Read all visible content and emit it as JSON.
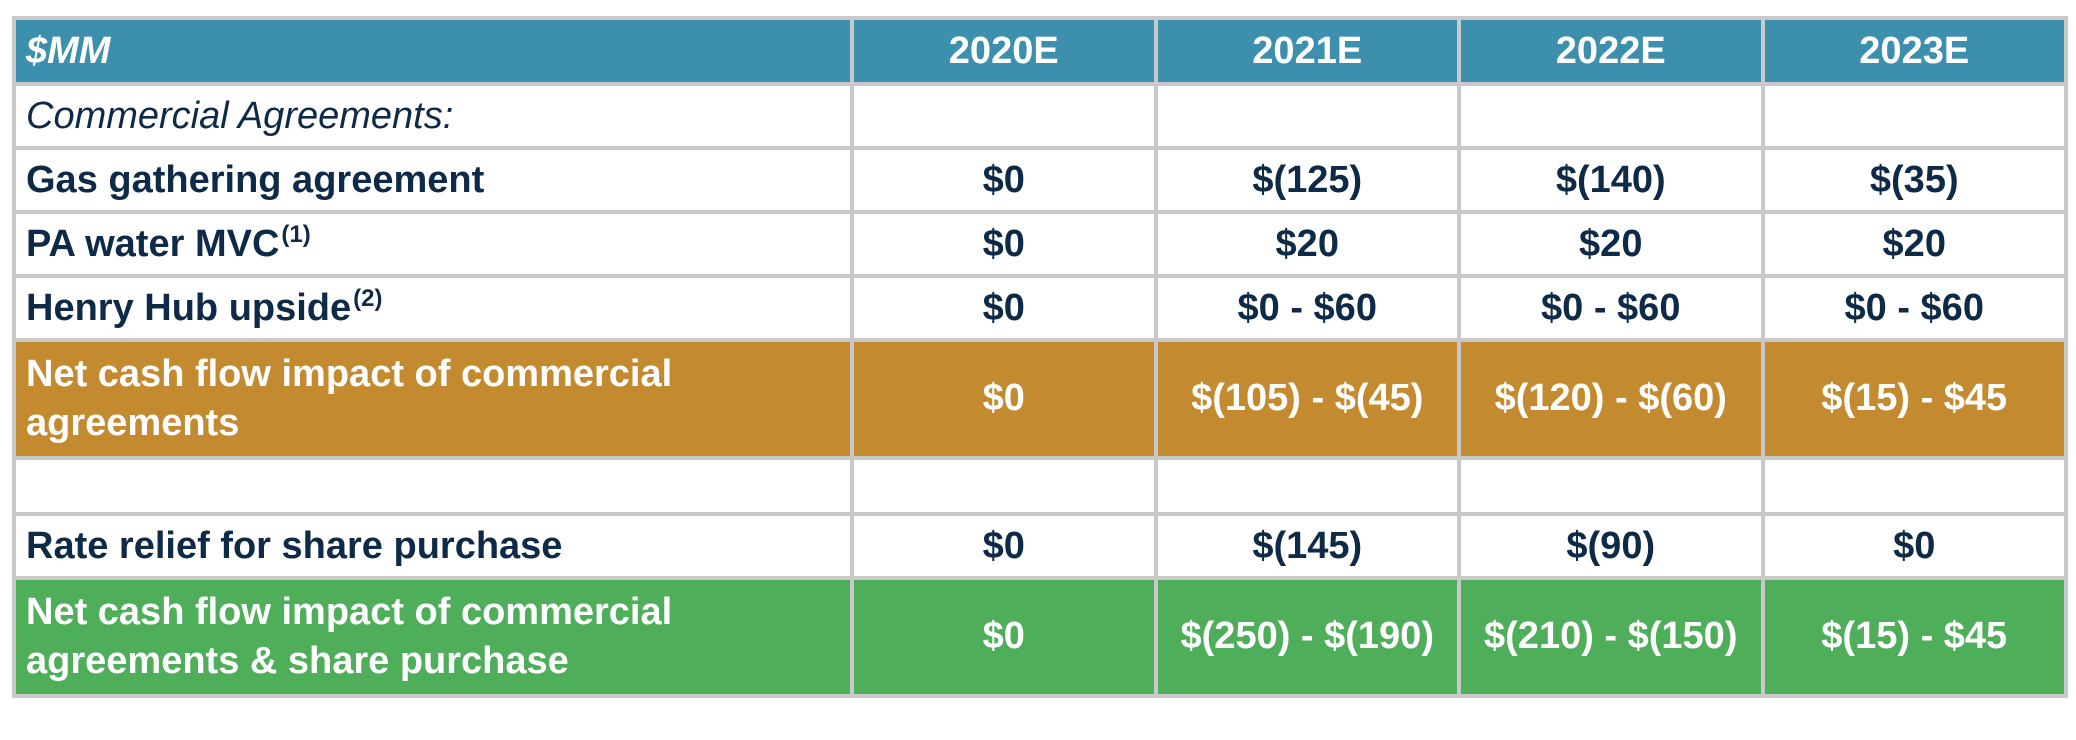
{
  "header": {
    "label": "$MM",
    "years": [
      "2020E",
      "2021E",
      "2022E",
      "2023E"
    ]
  },
  "rows": [
    {
      "label": "Commercial Agreements:",
      "values": [
        "",
        "",
        "",
        ""
      ]
    },
    {
      "label": "Gas gathering agreement",
      "sup": "",
      "values": [
        "$0",
        "$(125)",
        "$(140)",
        "$(35)"
      ]
    },
    {
      "label": "PA water MVC",
      "sup": "(1)",
      "values": [
        "$0",
        "$20",
        "$20",
        "$20"
      ]
    },
    {
      "label": "Henry Hub upside",
      "sup": "(2)",
      "values": [
        "$0",
        "$0 - $60",
        "$0 - $60",
        "$0 - $60"
      ]
    },
    {
      "label_line1": "Net cash flow impact of commercial",
      "label_line2": "agreements",
      "values": [
        "$0",
        "$(105) - $(45)",
        "$(120) - $(60)",
        "$(15) - $45"
      ]
    },
    {
      "label": "",
      "values": [
        "",
        "",
        "",
        ""
      ]
    },
    {
      "label": "Rate relief for share purchase",
      "values": [
        "$0",
        "$(145)",
        "$(90)",
        "$0"
      ]
    },
    {
      "label_line1": "Net cash flow impact of commercial",
      "label_line2": "agreements & share purchase",
      "values": [
        "$0",
        "$(250) - $(190)",
        "$(210) - $(150)",
        "$(15) - $45"
      ]
    }
  ],
  "colors": {
    "header_bg": "#3d8fae",
    "subtotal_bg": "#c38a30",
    "total_bg": "#4fae5a",
    "text_dark": "#0e2a47",
    "grid": "#c9c9c9"
  }
}
